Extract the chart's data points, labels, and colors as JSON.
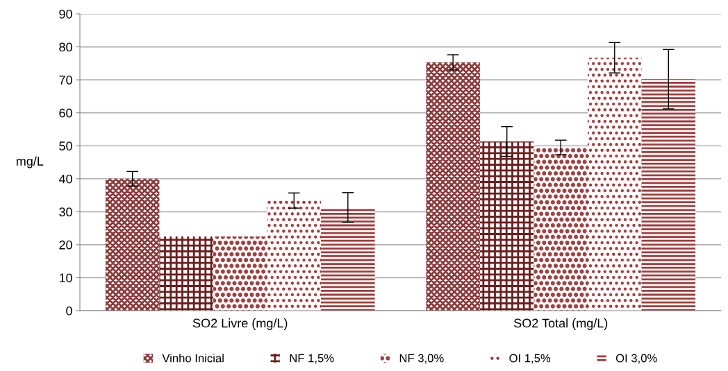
{
  "chart_data": {
    "type": "bar",
    "ylabel": "mg/L",
    "categories": [
      "SO2 Livre (mg/L)",
      "SO2 Total (mg/L)"
    ],
    "series": [
      {
        "name": "Vinho Inicial",
        "color": "#8b3a3a",
        "values": [
          40,
          75.3
        ],
        "errors": [
          2.2,
          2.3
        ]
      },
      {
        "name": "NF 1,5%",
        "color": "#6b1e1e",
        "values": [
          22.5,
          51.3
        ],
        "errors": [
          null,
          4.5
        ]
      },
      {
        "name": "NF 3,0%",
        "color": "#a04040",
        "values": [
          22.5,
          49.5
        ],
        "errors": [
          null,
          2.2
        ]
      },
      {
        "name": "OI 1,5%",
        "color": "#a33a3a",
        "values": [
          33.4,
          76.7
        ],
        "errors": [
          2.3,
          4.6
        ]
      },
      {
        "name": "OI 3,0%",
        "color": "#a33a3a",
        "values": [
          31.3,
          70.2
        ],
        "errors": [
          4.5,
          9
        ]
      }
    ],
    "ylim": [
      0,
      90
    ],
    "yticks": [
      0,
      10,
      20,
      30,
      40,
      50,
      60,
      70,
      80,
      90
    ],
    "grid": "y",
    "legend": "bottom"
  }
}
